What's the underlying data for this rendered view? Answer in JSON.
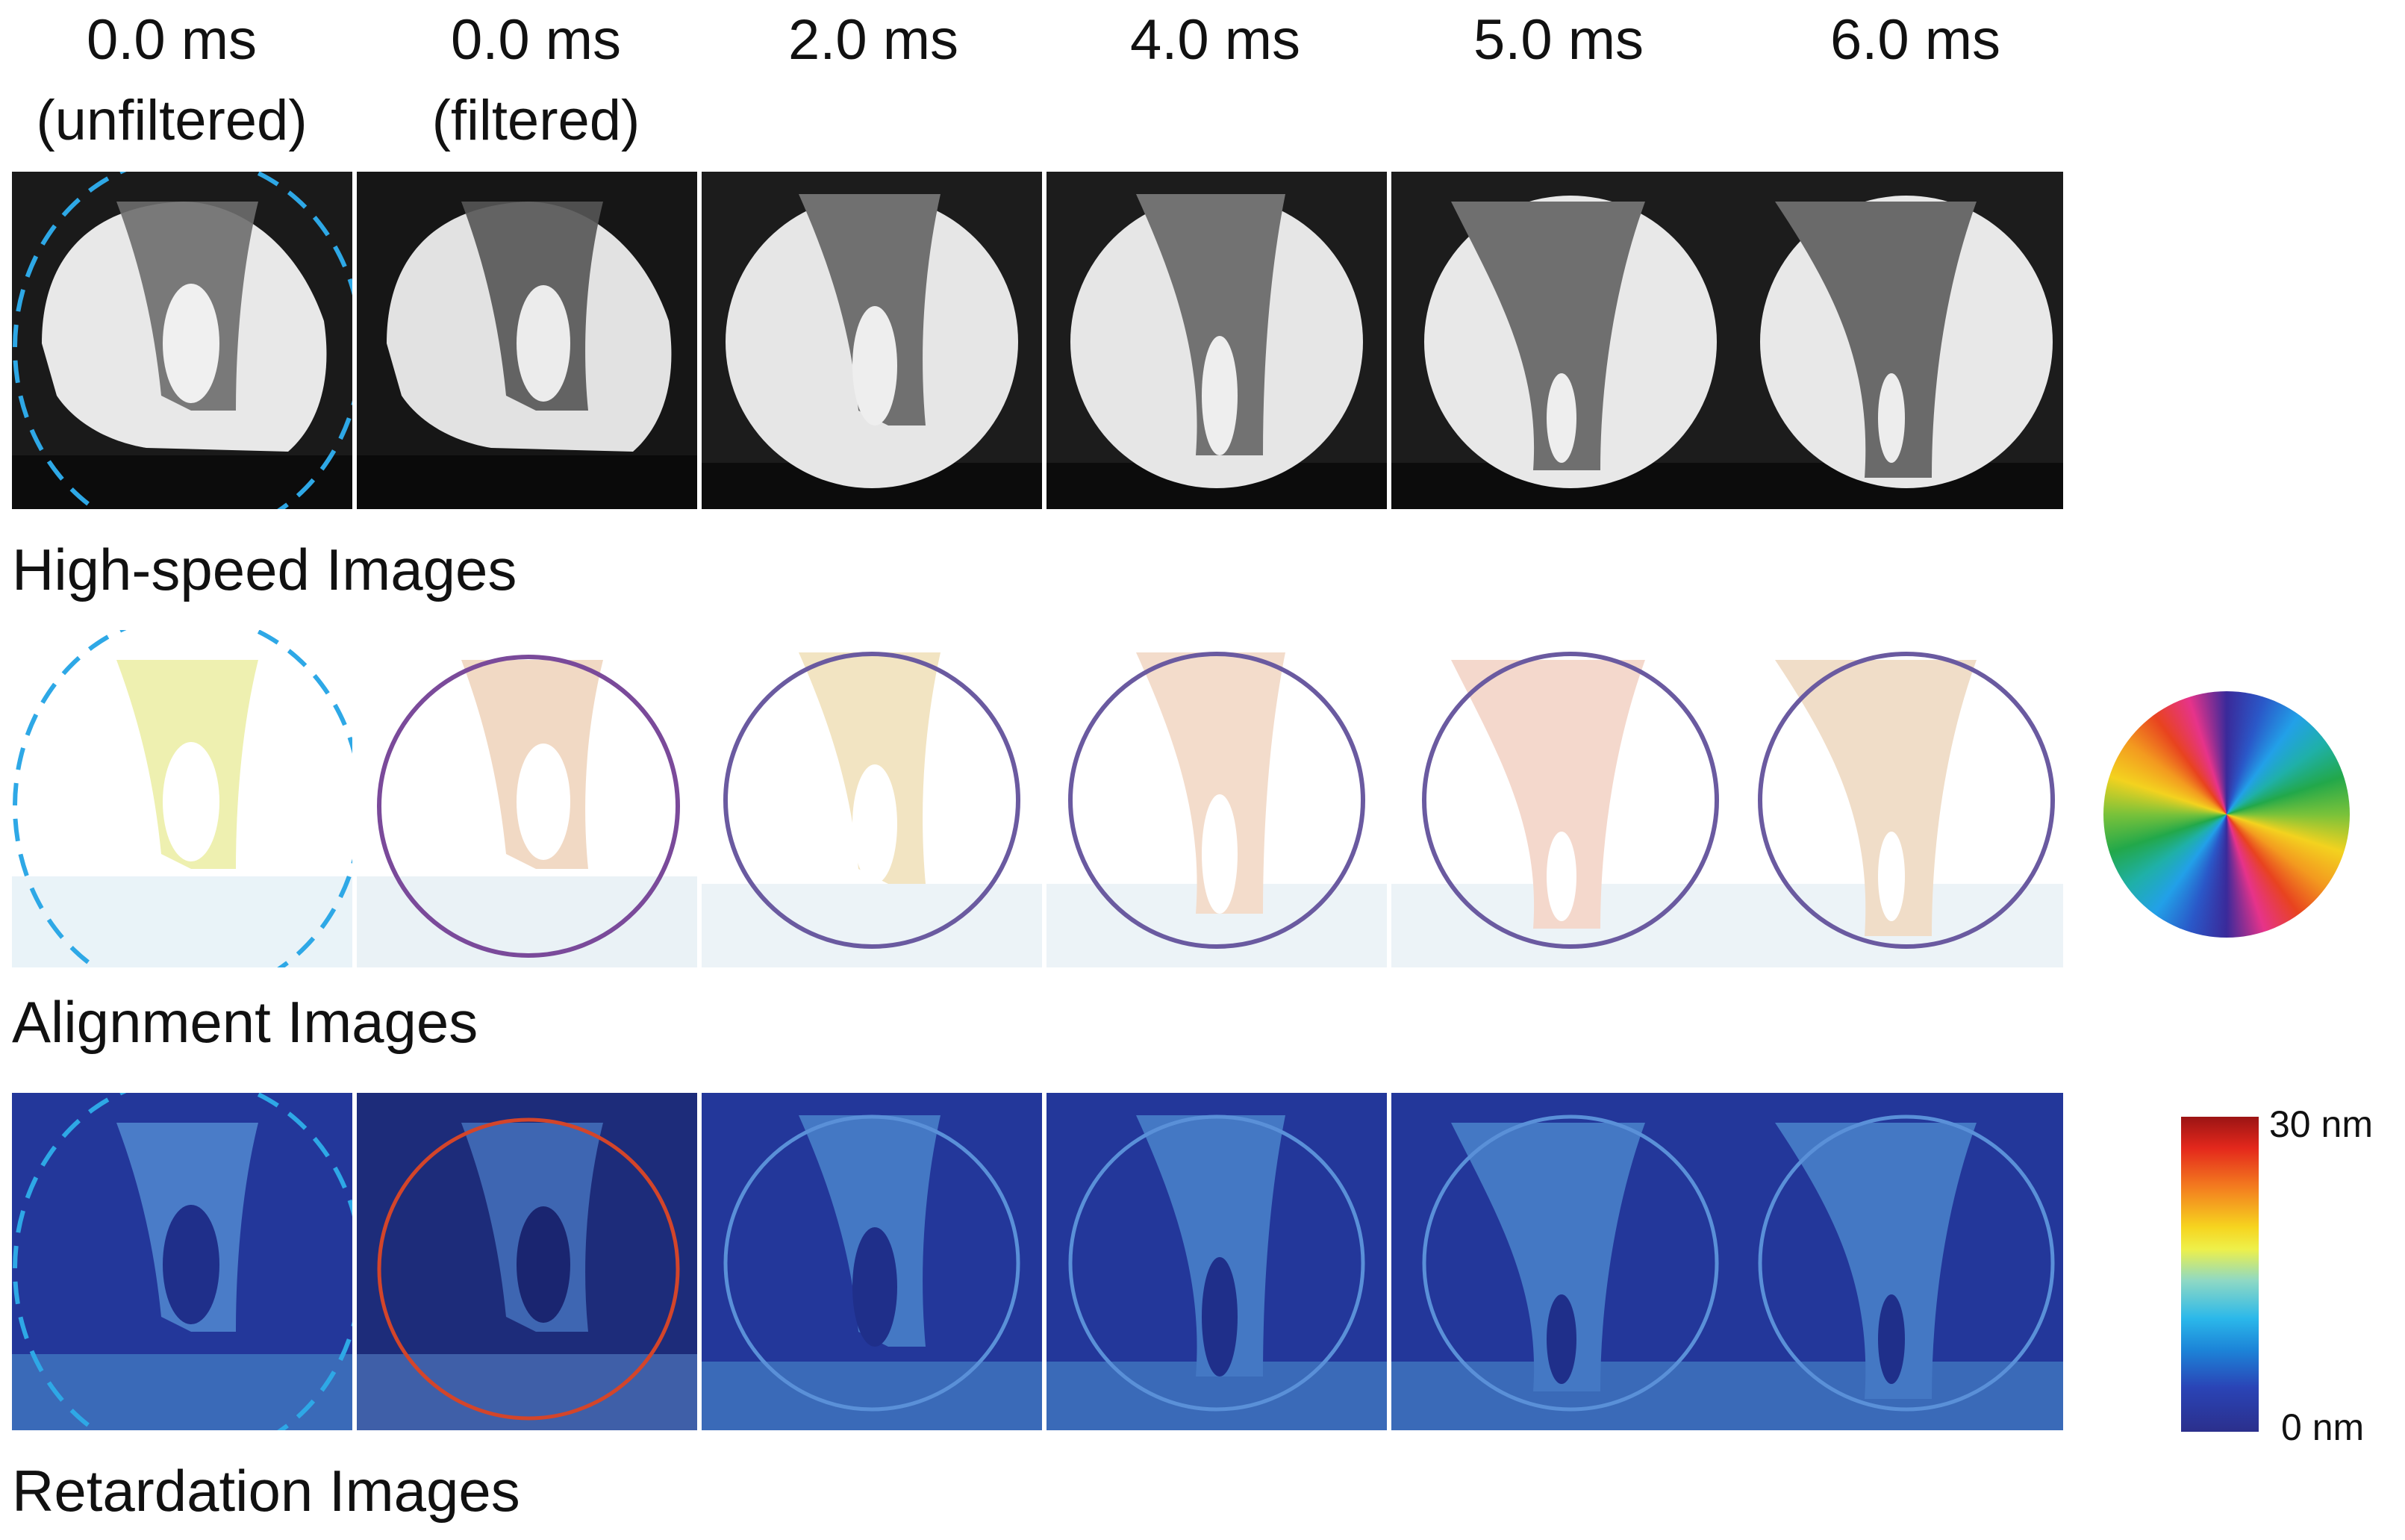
{
  "columns": [
    {
      "time": "0.0 ms",
      "note": "(unfiltered)"
    },
    {
      "time": "0.0 ms",
      "note": "(filtered)"
    },
    {
      "time": "2.0 ms",
      "note": ""
    },
    {
      "time": "4.0 ms",
      "note": ""
    },
    {
      "time": "5.0 ms",
      "note": ""
    },
    {
      "time": "6.0 ms",
      "note": ""
    }
  ],
  "rows": {
    "high_speed": "High-speed Images",
    "alignment": "Alignment Images",
    "retardation": "Retardation Images"
  },
  "colorbar": {
    "max_label": "30 nm",
    "min_label": "0 nm"
  },
  "colors": {
    "dashed_outline": "#2ea8e6",
    "retardation_background": "#23379a",
    "alignment_background": "#ffffff",
    "highspeed_background": "#1a1a1a"
  }
}
